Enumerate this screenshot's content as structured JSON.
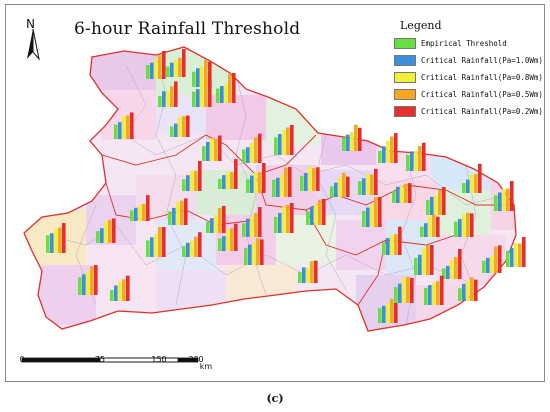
{
  "map": {
    "title": "6-hour Rainfall Threshold",
    "north_label": "N",
    "legend": {
      "title": "Legend",
      "items": [
        {
          "label": "Empirical Threshold",
          "color": "#66e040"
        },
        {
          "label": "Critical Rainfall(Pa=1.0Wm)",
          "color": "#3d8fd9"
        },
        {
          "label": "Critical Rainfall(Pa=0.8Wm)",
          "color": "#f2ef3a"
        },
        {
          "label": "Critical Rainfall(Pa=0.5Wm)",
          "color": "#f5a623"
        },
        {
          "label": "Critical Rainfall(Pa=0.2Wm)",
          "color": "#e62e2e"
        }
      ]
    },
    "scale_bar": {
      "labels": [
        "0",
        "75",
        "150",
        "300"
      ],
      "unit": "km"
    },
    "boundary_color": "#e0302a"
  },
  "caption": "(c)"
}
